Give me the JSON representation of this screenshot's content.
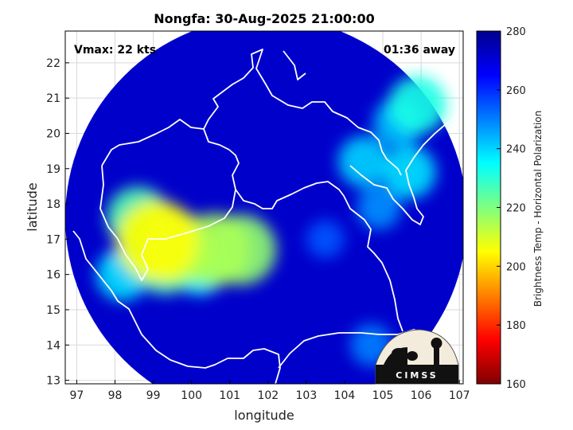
{
  "chart_data": {
    "type": "heatmap",
    "title": "Nongfa: 30-Aug-2025 21:00:00",
    "xlabel": "longitude",
    "ylabel": "latitude",
    "xlim": [
      96.7,
      107.1
    ],
    "ylim": [
      12.9,
      22.9
    ],
    "xticks": [
      "97",
      "98",
      "99",
      "100",
      "101",
      "102",
      "103",
      "104",
      "105",
      "106",
      "107"
    ],
    "yticks": [
      "13",
      "14",
      "15",
      "16",
      "17",
      "18",
      "19",
      "20",
      "21",
      "22"
    ],
    "grid": true,
    "annotations": {
      "vmax": "Vmax: 22 kts",
      "away": "01:36 away"
    },
    "colorbar": {
      "label": "Brightness Temp - Horizontal Polarization",
      "range": [
        160,
        280
      ],
      "ticks": [
        "280",
        "260",
        "240",
        "220",
        "200",
        "180",
        "160"
      ],
      "colormap": "jet"
    },
    "swath": {
      "center_lon": 101.95,
      "center_lat": 17.6,
      "radius_deg": 5.25
    },
    "warm_background_tb": 272,
    "cold_features": [
      {
        "lon": 99.1,
        "lat": 16.95,
        "tb": 205
      },
      {
        "lon": 99.6,
        "lat": 16.75,
        "tb": 214
      },
      {
        "lon": 100.6,
        "lat": 16.7,
        "tb": 215
      },
      {
        "lon": 101.3,
        "lat": 16.7,
        "tb": 218
      },
      {
        "lon": 98.6,
        "lat": 17.6,
        "tb": 226
      },
      {
        "lon": 99.3,
        "lat": 16.3,
        "tb": 228
      },
      {
        "lon": 98.2,
        "lat": 16.0,
        "tb": 238
      },
      {
        "lon": 100.2,
        "lat": 16.2,
        "tb": 235
      },
      {
        "lon": 105.9,
        "lat": 20.8,
        "tb": 232
      },
      {
        "lon": 105.4,
        "lat": 20.3,
        "tb": 242
      },
      {
        "lon": 104.5,
        "lat": 19.2,
        "tb": 240
      },
      {
        "lon": 105.7,
        "lat": 18.9,
        "tb": 238
      },
      {
        "lon": 104.9,
        "lat": 17.9,
        "tb": 248
      },
      {
        "lon": 103.5,
        "lat": 17.0,
        "tb": 255
      },
      {
        "lon": 104.7,
        "lat": 14.0,
        "tb": 250
      }
    ]
  },
  "logo": {
    "text": "CIMSS"
  },
  "colors": {
    "frame": "#000000",
    "grid": "#d9d9d9",
    "coast": "#ffffff"
  }
}
